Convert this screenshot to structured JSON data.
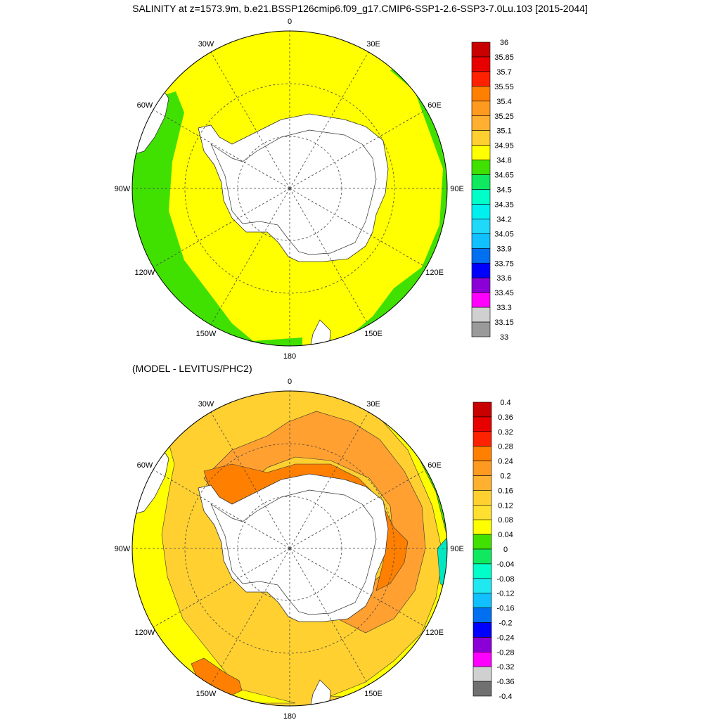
{
  "title": "SALINITY at z=1573.9m, b.e21.BSSP126cmip6.f09_g17.CMIP6-SSP1-2.6-SSP3-7.0Lu.103 [2015-2044]",
  "subtitle": "(MODEL - LEVITUS/PHC2)",
  "lon_labels": [
    "0",
    "30E",
    "60E",
    "90E",
    "120E",
    "150E",
    "180",
    "150W",
    "120W",
    "90W",
    "60W",
    "30W"
  ],
  "colors": {
    "land": "#ffffff",
    "grid": "#444444",
    "coast": "#333333"
  },
  "panel1": {
    "field_colors": {
      "main": "#ffff00",
      "edge": "#40e000"
    },
    "colorbar": {
      "labels": [
        "36",
        "35.85",
        "35.7",
        "35.55",
        "35.4",
        "35.25",
        "35.1",
        "34.95",
        "34.8",
        "34.65",
        "34.5",
        "34.35",
        "34.2",
        "34.05",
        "33.9",
        "33.75",
        "33.6",
        "33.45",
        "33.3",
        "33.15",
        "33"
      ],
      "colors": [
        "#c80000",
        "#e80000",
        "#ff2200",
        "#ff8000",
        "#ff9a20",
        "#ffb030",
        "#ffd030",
        "#ffff00",
        "#40e000",
        "#10e860",
        "#00ffc8",
        "#00f0f0",
        "#20d8f8",
        "#10c0ff",
        "#0070f0",
        "#0000ff",
        "#8c00d8",
        "#ff00ff",
        "#d0d0d0",
        "#9a9a9a"
      ]
    }
  },
  "panel2": {
    "field_colors": {
      "base": "#ffd030",
      "high": "#ffa030",
      "peak": "#ff8000",
      "low": "#ffff00",
      "lower": "#40e000",
      "lowest": "#00e8c0"
    },
    "colorbar": {
      "labels": [
        "0.4",
        "0.36",
        "0.32",
        "0.28",
        "0.24",
        "0.2",
        "0.16",
        "0.12",
        "0.08",
        "0.04",
        "0",
        "-0.04",
        "-0.08",
        "-0.12",
        "-0.16",
        "-0.2",
        "-0.24",
        "-0.28",
        "-0.32",
        "-0.36",
        "-0.4"
      ],
      "colors": [
        "#c80000",
        "#e80000",
        "#ff2200",
        "#ff8000",
        "#ff9a20",
        "#ffb030",
        "#ffd030",
        "#ffe030",
        "#ffff00",
        "#40e000",
        "#10e860",
        "#00ffc8",
        "#20e8f0",
        "#10c0ff",
        "#0070f0",
        "#0000ff",
        "#8c00d8",
        "#ff00ff",
        "#d0d0d0",
        "#707070"
      ]
    }
  }
}
